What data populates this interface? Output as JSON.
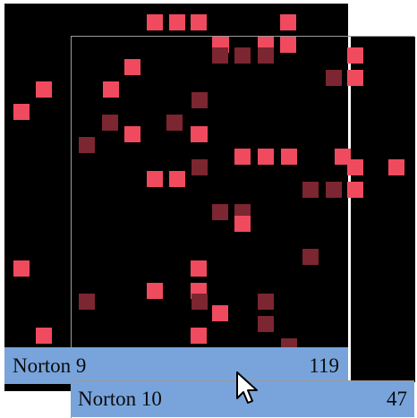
{
  "windows": [
    {
      "label": "Norton 9",
      "count": "119"
    },
    {
      "label": "Norton 10",
      "count": "47"
    }
  ],
  "colors": {
    "cell_bright": "#f04a5f",
    "cell_dim": "#7b2630",
    "panel_bg": "#000000",
    "label_bar": "#78a4db"
  },
  "cursor": {
    "icon": "arrow-cursor-icon"
  }
}
